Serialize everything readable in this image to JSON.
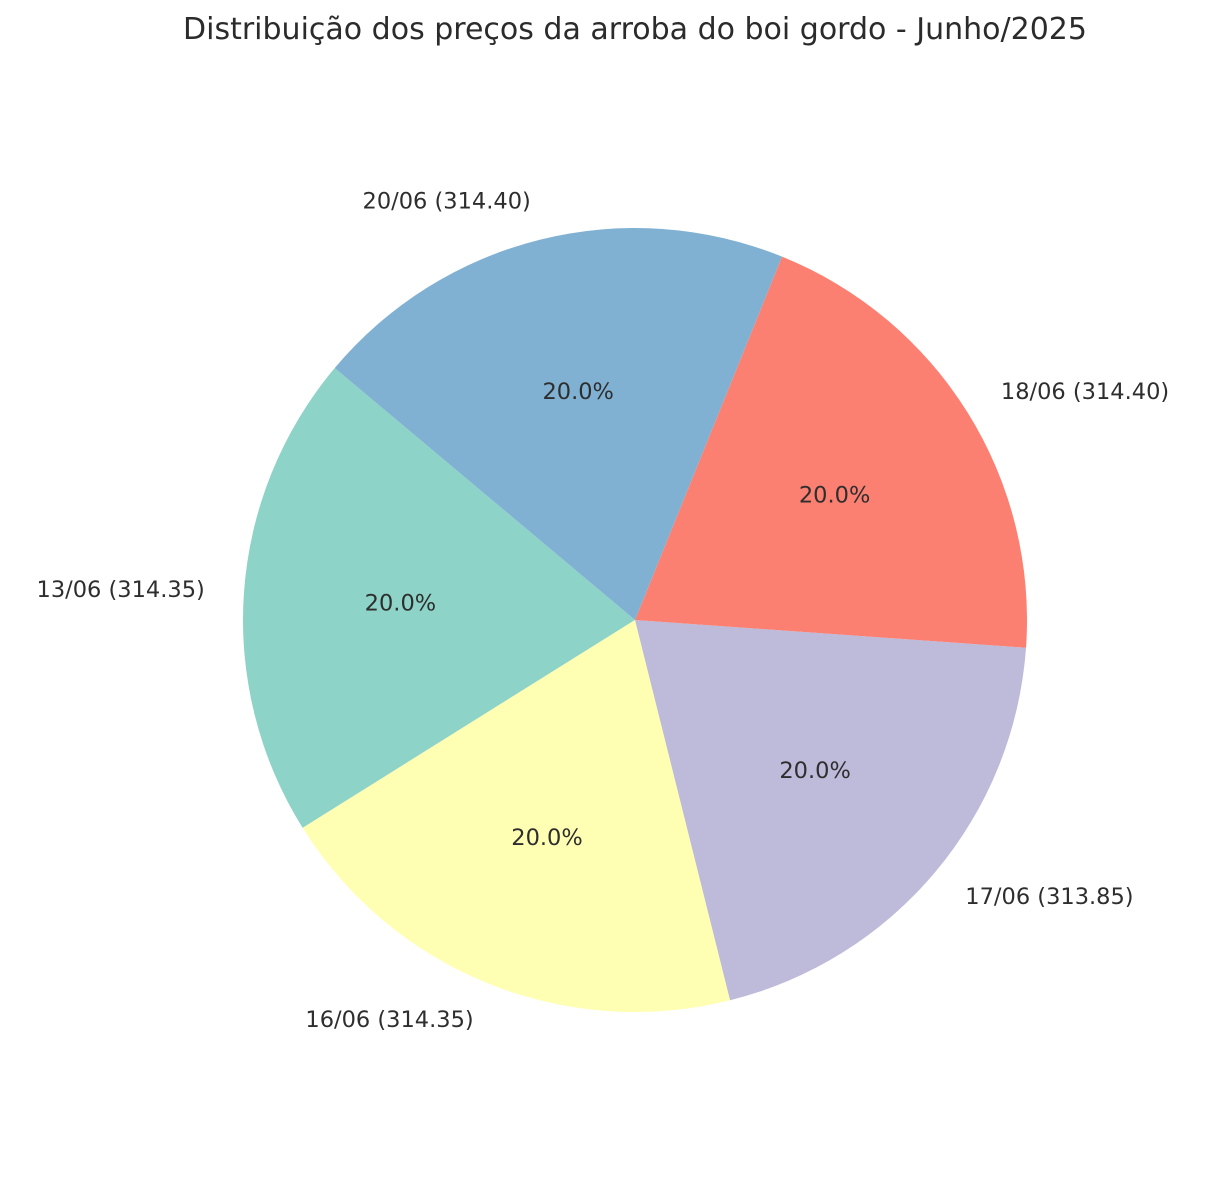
{
  "chart_data": {
    "type": "pie",
    "title": "Distribuição dos preços da arroba do boi gordo - Junho/2025",
    "categories": [
      "13/06",
      "16/06",
      "17/06",
      "18/06",
      "20/06"
    ],
    "values": [
      314.35,
      314.35,
      313.85,
      314.4,
      314.4
    ],
    "slice_labels": [
      "13/06 (314.35)",
      "16/06 (314.35)",
      "17/06 (313.85)",
      "18/06 (314.40)",
      "20/06 (314.40)"
    ],
    "pct_labels": [
      "20.0%",
      "20.0%",
      "20.0%",
      "20.0%",
      "20.0%"
    ],
    "colors": [
      "#8dd3c7",
      "#ffffb3",
      "#bebada",
      "#fb8072",
      "#80b1d3"
    ],
    "text_color": "#2e2e2e",
    "title_color": "#2b2b2b",
    "background": "#ffffff",
    "layout": {
      "start_angle": 140,
      "counterclockwise": true,
      "label_distance": 1.1,
      "pct_distance": 0.6,
      "legend": false,
      "grid": false
    }
  }
}
